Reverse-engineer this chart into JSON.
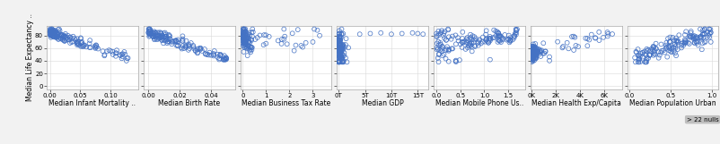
{
  "title_y": "Median Life Expectancy ..",
  "panels": [
    {
      "xlabel": "Median Infant Mortality ..",
      "xticks": [
        0.0,
        0.05,
        0.1
      ],
      "xlim": [
        -0.005,
        0.145
      ],
      "xticklabels": [
        "0.00",
        "0.05",
        "0.10"
      ]
    },
    {
      "xlabel": "Median Birth Rate",
      "xticks": [
        0.0,
        0.02,
        0.04
      ],
      "xlim": [
        -0.003,
        0.055
      ],
      "xticklabels": [
        "0.00",
        "0.02",
        "0.04"
      ]
    },
    {
      "xlabel": "Median Business Tax Rate",
      "xticks": [
        0,
        1,
        2,
        3
      ],
      "xlim": [
        -0.1,
        3.8
      ],
      "xticklabels": [
        "0",
        "1",
        "2",
        "3"
      ]
    },
    {
      "xlabel": "Median GDP",
      "xticks": [
        0,
        5,
        10,
        15
      ],
      "xlim": [
        -0.3,
        17
      ],
      "xticklabels": [
        "0T",
        "5T",
        "10T",
        "15T"
      ]
    },
    {
      "xlabel": "Median Mobile Phone Us..",
      "xticks": [
        0.0,
        0.5,
        1.0,
        1.5
      ],
      "xlim": [
        -0.05,
        1.85
      ],
      "xticklabels": [
        "0.0",
        "0.5",
        "1.0",
        "1.5"
      ]
    },
    {
      "xlabel": "Median Health Exp/Capita",
      "xticks": [
        0,
        2000,
        4000,
        6000
      ],
      "xlim": [
        -100,
        7500
      ],
      "xticklabels": [
        "0K",
        "2K",
        "4K",
        "6K"
      ]
    },
    {
      "xlabel": "Median Population Urban",
      "xticks": [
        0.0,
        0.5,
        1.0
      ],
      "xlim": [
        -0.03,
        1.08
      ],
      "xticklabels": [
        "0.0",
        "0.5",
        "1.0"
      ]
    }
  ],
  "ylim": [
    -5,
    95
  ],
  "yticks": [
    0,
    20,
    40,
    60,
    80
  ],
  "yticklabels": [
    "0",
    "20",
    "40",
    "60",
    "80"
  ],
  "marker_color": "#4472C4",
  "marker_size": 3.5,
  "background_color": "#F2F2F2",
  "plot_bg_color": "#FFFFFF",
  "grid_color": "#D9D9D9",
  "annotation_text": "> 22 nulls",
  "annotation_bg": "#BFBFBF"
}
